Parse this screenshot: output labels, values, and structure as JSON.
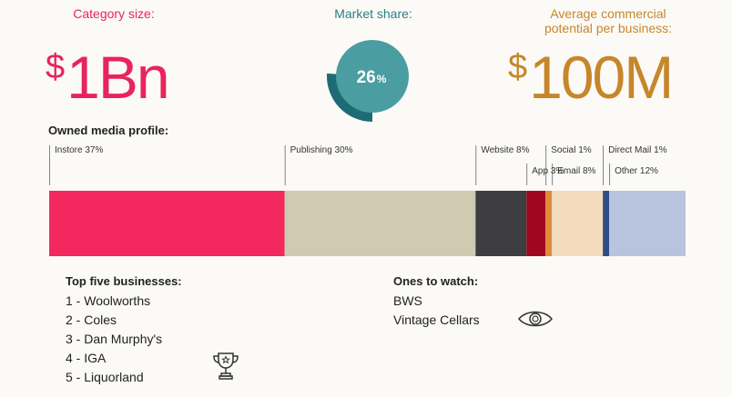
{
  "stats": {
    "category_label": "Category size:",
    "category_currency": "$",
    "category_value": "1Bn",
    "market_share_label": "Market share:",
    "market_share_value": "26",
    "market_share_unit": "%",
    "market_share_fraction": 0.26,
    "potential_label_line1": "Average commercial",
    "potential_label_line2": "potential per business:",
    "potential_currency": "$",
    "potential_value": "100M"
  },
  "colors": {
    "pink": "#e8245c",
    "teal": "#4a9ea1",
    "dark_teal": "#1d6c75",
    "gold": "#c7862a"
  },
  "chart_data": {
    "type": "bar",
    "title": "Owned media profile:",
    "segments": [
      {
        "name": "Instore",
        "label": "Instore 37%",
        "value": 37,
        "color": "#f2285e",
        "row": 1
      },
      {
        "name": "Publishing",
        "label": "Publishing 30%",
        "value": 30,
        "color": "#d0cab3",
        "row": 1
      },
      {
        "name": "Website",
        "label": "Website 8%",
        "value": 8,
        "color": "#3e3e40",
        "row": 1
      },
      {
        "name": "App",
        "label": "App 3%",
        "value": 3,
        "color": "#a0061f",
        "row": 2
      },
      {
        "name": "Social",
        "label": "Social 1%",
        "value": 1,
        "color": "#e08a3c",
        "row": 1
      },
      {
        "name": "Email",
        "label": "Email 8%",
        "value": 8,
        "color": "#f2dcbd",
        "row": 2
      },
      {
        "name": "Direct Mail",
        "label": "Direct Mail 1%",
        "value": 1,
        "color": "#2f4e86",
        "row": 1
      },
      {
        "name": "Other",
        "label": "Other 12%",
        "value": 12,
        "color": "#b8c3dd",
        "row": 2
      }
    ]
  },
  "top_five": {
    "title": "Top five businesses:",
    "items": [
      "1 - Woolworths",
      "2 - Coles",
      "3 - Dan Murphy's",
      "4 - IGA",
      "5 - Liquorland"
    ],
    "icon": "trophy-icon"
  },
  "ones_to_watch": {
    "title": "Ones to watch:",
    "items": [
      "BWS",
      "Vintage Cellars"
    ],
    "icon": "eye-icon"
  }
}
